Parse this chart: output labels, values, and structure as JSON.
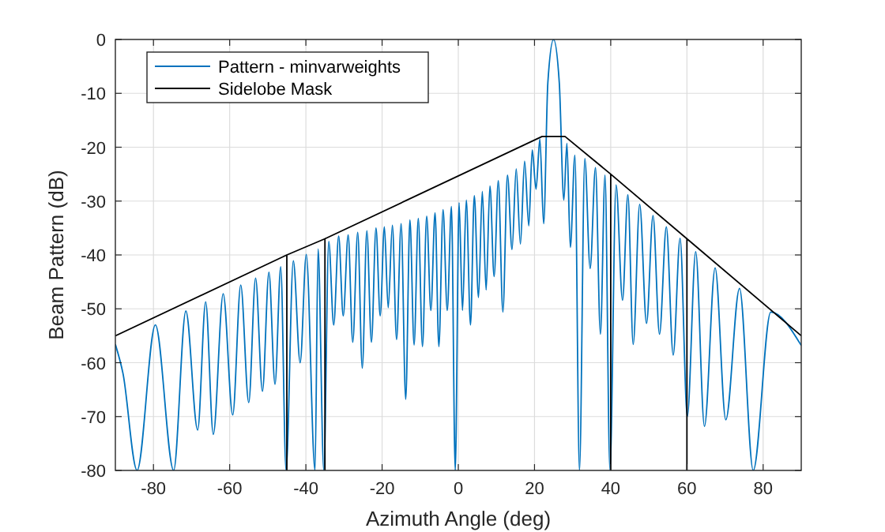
{
  "chart_data": {
    "type": "line",
    "xlabel": "Azimuth Angle (deg)",
    "ylabel": "Beam Pattern (dB)",
    "xlim": [
      -90,
      90
    ],
    "ylim": [
      -80,
      0
    ],
    "xticks": [
      -80,
      -60,
      -40,
      -20,
      0,
      20,
      40,
      60,
      80
    ],
    "yticks": [
      -80,
      -70,
      -60,
      -50,
      -40,
      -30,
      -20,
      -10,
      0
    ],
    "grid": true,
    "legend": "top left",
    "line_style": "solid",
    "series": [
      {
        "name": "Pattern - minvarweights",
        "color": "#0072bd",
        "x": [
          -90,
          -88,
          -84.3,
          -79.5,
          -74.7,
          -71.5,
          -68.4,
          -66.3,
          -64.3,
          -61.7,
          -59.2,
          -57.1,
          -55,
          -53.2,
          -51.4,
          -49.7,
          -48.1,
          -46.6,
          -45.2,
          -43.3,
          -41.5,
          -39.9,
          -37.6,
          -36.8,
          -35.3,
          -34,
          -32.7,
          -31.4,
          -30.2,
          -28.9,
          -27.7,
          -26.4,
          -25.2,
          -24,
          -22.8,
          -21.6,
          -20.5,
          -19.4,
          -18.4,
          -17.3,
          -16.2,
          -15,
          -13.8,
          -12.7,
          -11.6,
          -10.5,
          -9.4,
          -8.3,
          -7.2,
          -6.1,
          -5.1,
          -4,
          -2.9,
          -1.8,
          -0.8,
          0.2,
          1.1,
          2.1,
          3.2,
          4.2,
          5.3,
          6.3,
          7.3,
          8.3,
          9.4,
          10.5,
          11.7,
          12.9,
          14.1,
          15.2,
          16.3,
          17.4,
          18.5,
          19.4,
          20.4,
          21.4,
          22.4,
          23.5,
          25,
          26.5,
          27.7,
          28.5,
          29.4,
          30.6,
          31.8,
          33.2,
          34.6,
          36,
          37.3,
          38.5,
          39.8,
          41.4,
          43.1,
          44.5,
          45.9,
          47.6,
          49.4,
          51.1,
          52.8,
          54.6,
          56.4,
          58.2,
          60.1,
          62.3,
          64.6,
          67.4,
          70.2,
          73.8,
          77.4,
          82,
          90
        ],
        "values": [
          -56.6,
          -62,
          -80,
          -53,
          -80,
          -50.4,
          -72.5,
          -48.7,
          -73.3,
          -47.2,
          -69.7,
          -45.6,
          -67.4,
          -44.3,
          -65.3,
          -43.2,
          -64,
          -42.2,
          -80,
          -41.1,
          -60,
          -39.9,
          -80,
          -38.9,
          -80,
          -37.5,
          -53,
          -36.5,
          -51.3,
          -36.3,
          -56.2,
          -35.8,
          -61,
          -35.5,
          -56.2,
          -35,
          -51.3,
          -34.8,
          -49.8,
          -34.5,
          -55.7,
          -34.2,
          -66.8,
          -33.5,
          -56.7,
          -33.2,
          -57,
          -32.8,
          -50.3,
          -32.2,
          -57,
          -31.6,
          -50.3,
          -31,
          -80,
          -30.3,
          -50.3,
          -29.8,
          -53,
          -29,
          -47.9,
          -28.2,
          -46.5,
          -27.2,
          -44,
          -26.2,
          -50.6,
          -25.2,
          -39,
          -24,
          -38,
          -22.6,
          -34.6,
          -20.5,
          -27.8,
          -18.5,
          -34.2,
          -8,
          0,
          -8,
          -29.8,
          -19.3,
          -38.6,
          -21.5,
          -80,
          -22.1,
          -42.5,
          -23.8,
          -54.7,
          -25.2,
          -80,
          -27,
          -48.4,
          -28.8,
          -56.6,
          -30.6,
          -52.7,
          -32.7,
          -54.7,
          -34.8,
          -58.6,
          -36.9,
          -70,
          -39.4,
          -71.8,
          -42.4,
          -70.6,
          -46.2,
          -80,
          -50.6,
          -56.8
        ]
      },
      {
        "name": "Sidelobe Mask",
        "color": "#000000",
        "x": [
          -90,
          -45,
          -45,
          -45,
          -35,
          -35,
          -35,
          22,
          28,
          40,
          40,
          40,
          60,
          60,
          60,
          90
        ],
        "values": [
          -55,
          -40,
          -80,
          -40,
          -37,
          -80,
          -37,
          -18,
          -18,
          -25,
          -80,
          -25,
          -37,
          -80,
          -37,
          -55
        ]
      }
    ]
  }
}
